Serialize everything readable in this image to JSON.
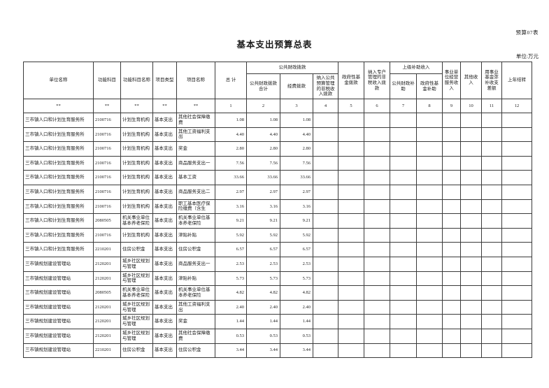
{
  "page": {
    "sheet_label": "预算07表",
    "title": "基本支出预算总表",
    "unit_note": "单位:万元"
  },
  "table": {
    "header": {
      "unit_name": "单位名称",
      "func_code": "功能科目",
      "func_name": "功能科目名称",
      "proj_type": "项目类型",
      "proj_name": "项目名称",
      "total": "总 计",
      "pub_fin_group": "公共财政拨款",
      "pub_fin_total": "公共财政拨款合计",
      "funding": "经费拨款",
      "nontax_budget": "纳入公共预算管理的非税收入拨款",
      "gov_fund": "政府性基金拨款",
      "nontax_special": "纳入专户管理的非税收入拨款",
      "higher_subsidy_group": "上级补助收入",
      "pub_fin_subsidy": "公共财政补助",
      "gov_fund_subsidy": "政府性基金补助",
      "business_income": "事业单位经营服务收入",
      "other_income": "其他收入",
      "fund_balance": "用事业基金弥补收支差额",
      "prev_carryover": "上年结转"
    },
    "code_row": [
      "**",
      "**",
      "**",
      "**",
      "**",
      "1",
      "2",
      "3",
      "4",
      "5",
      "6",
      "7",
      "8",
      "9",
      "10",
      "11",
      "12"
    ],
    "row_field_order": [
      "unit",
      "func_code",
      "func_name",
      "proj_type",
      "proj_name",
      "total",
      "pub_fin_total",
      "funding",
      "nontax_budget",
      "gov_fund",
      "nontax_special",
      "pub_fin_subsidy",
      "gov_fund_subsidy",
      "business_income",
      "other_income",
      "fund_balance",
      "prev_carryover"
    ],
    "rows": [
      {
        "unit": "三市镇人口和计划生育服务所",
        "func_code": "2100716",
        "func_name": "计划生育机构",
        "proj_type": "基本支出",
        "proj_name": "其他社会保障缴费",
        "total": "1.08",
        "pub_fin_total": "1.08",
        "funding": "1.08"
      },
      {
        "unit": "三市镇人口和计划生育服务所",
        "func_code": "2100716",
        "func_name": "计划生育机构",
        "proj_type": "基本支出",
        "proj_name": "其他工资福利支出",
        "total": "4.40",
        "pub_fin_total": "4.40",
        "funding": "4.40"
      },
      {
        "unit": "三市镇人口和计划生育服务所",
        "func_code": "2100716",
        "func_name": "计划生育机构",
        "proj_type": "基本支出",
        "proj_name": "奖金",
        "total": "2.80",
        "pub_fin_total": "2.80",
        "funding": "2.80"
      },
      {
        "unit": "三市镇人口和计划生育服务所",
        "func_code": "2100716",
        "func_name": "计划生育机构",
        "proj_type": "基本支出",
        "proj_name": "商品服务支出一",
        "total": "7.56",
        "pub_fin_total": "7.56",
        "funding": "7.56"
      },
      {
        "unit": "三市镇人口和计划生育服务所",
        "func_code": "2100716",
        "func_name": "计划生育机构",
        "proj_type": "基本支出",
        "proj_name": "基本工资",
        "total": "33.66",
        "pub_fin_total": "33.66",
        "funding": "33.66"
      },
      {
        "unit": "三市镇人口和计划生育服务所",
        "func_code": "2100716",
        "func_name": "计划生育机构",
        "proj_type": "基本支出",
        "proj_name": "商品服务支出二",
        "total": "2.97",
        "pub_fin_total": "2.97",
        "funding": "2.97"
      },
      {
        "unit": "三市镇人口和计划生育服务所",
        "func_code": "2100716",
        "func_name": "计划生育机构",
        "proj_type": "基本支出",
        "proj_name": "职工基本医疗保险缴费（含生",
        "total": "3.16",
        "pub_fin_total": "3.16",
        "funding": "3.16"
      },
      {
        "unit": "三市镇人口和计划生育服务所",
        "func_code": "2080505",
        "func_name": "机关事业单位基本养老保险",
        "proj_type": "基本支出",
        "proj_name": "机关事业单位基本养老保险",
        "total": "9.21",
        "pub_fin_total": "9.21",
        "funding": "9.21"
      },
      {
        "unit": "三市镇人口和计划生育服务所",
        "func_code": "2100716",
        "func_name": "计划生育机构",
        "proj_type": "基本支出",
        "proj_name": "津贴补贴",
        "total": "5.92",
        "pub_fin_total": "5.92",
        "funding": "5.92"
      },
      {
        "unit": "三市镇人口和计划生育服务所",
        "func_code": "2210201",
        "func_name": "住房公积金",
        "proj_type": "基本支出",
        "proj_name": "住房公积金",
        "total": "6.57",
        "pub_fin_total": "6.57",
        "funding": "6.57"
      },
      {
        "unit": "三市镇规划建设管理站",
        "func_code": "2120201",
        "func_name": "城乡社区规划与管理",
        "proj_type": "基本支出",
        "proj_name": "商品服务支出一",
        "total": "2.53",
        "pub_fin_total": "2.53",
        "funding": "2.53"
      },
      {
        "unit": "三市镇规划建设管理站",
        "func_code": "2120201",
        "func_name": "城乡社区规划与管理",
        "proj_type": "基本支出",
        "proj_name": "津贴补贴",
        "total": "5.73",
        "pub_fin_total": "5.73",
        "funding": "5.73"
      },
      {
        "unit": "三市镇规划建设管理站",
        "func_code": "2080505",
        "func_name": "机关事业单位基本养老保险",
        "proj_type": "基本支出",
        "proj_name": "机关事业单位基本养老保险",
        "total": "4.82",
        "pub_fin_total": "4.82",
        "funding": "4.82"
      },
      {
        "unit": "三市镇规划建设管理站",
        "func_code": "2120201",
        "func_name": "城乡社区规划与管理",
        "proj_type": "基本支出",
        "proj_name": "其他工资福利支出",
        "total": "2.40",
        "pub_fin_total": "2.40",
        "funding": "2.40"
      },
      {
        "unit": "三市镇规划建设管理站",
        "func_code": "2120201",
        "func_name": "城乡社区规划与管理",
        "proj_type": "基本支出",
        "proj_name": "奖金",
        "total": "1.44",
        "pub_fin_total": "1.44",
        "funding": "1.44"
      },
      {
        "unit": "三市镇规划建设管理站",
        "func_code": "2120201",
        "func_name": "城乡社区规划与管理",
        "proj_type": "基本支出",
        "proj_name": "其他社会保障缴费",
        "total": "0.53",
        "pub_fin_total": "0.53",
        "funding": "0.53"
      },
      {
        "unit": "三市镇规划建设管理站",
        "func_code": "2210201",
        "func_name": "住房公积金",
        "proj_type": "基本支出",
        "proj_name": "住房公积金",
        "total": "3.44",
        "pub_fin_total": "3.44",
        "funding": "3.44"
      }
    ]
  }
}
